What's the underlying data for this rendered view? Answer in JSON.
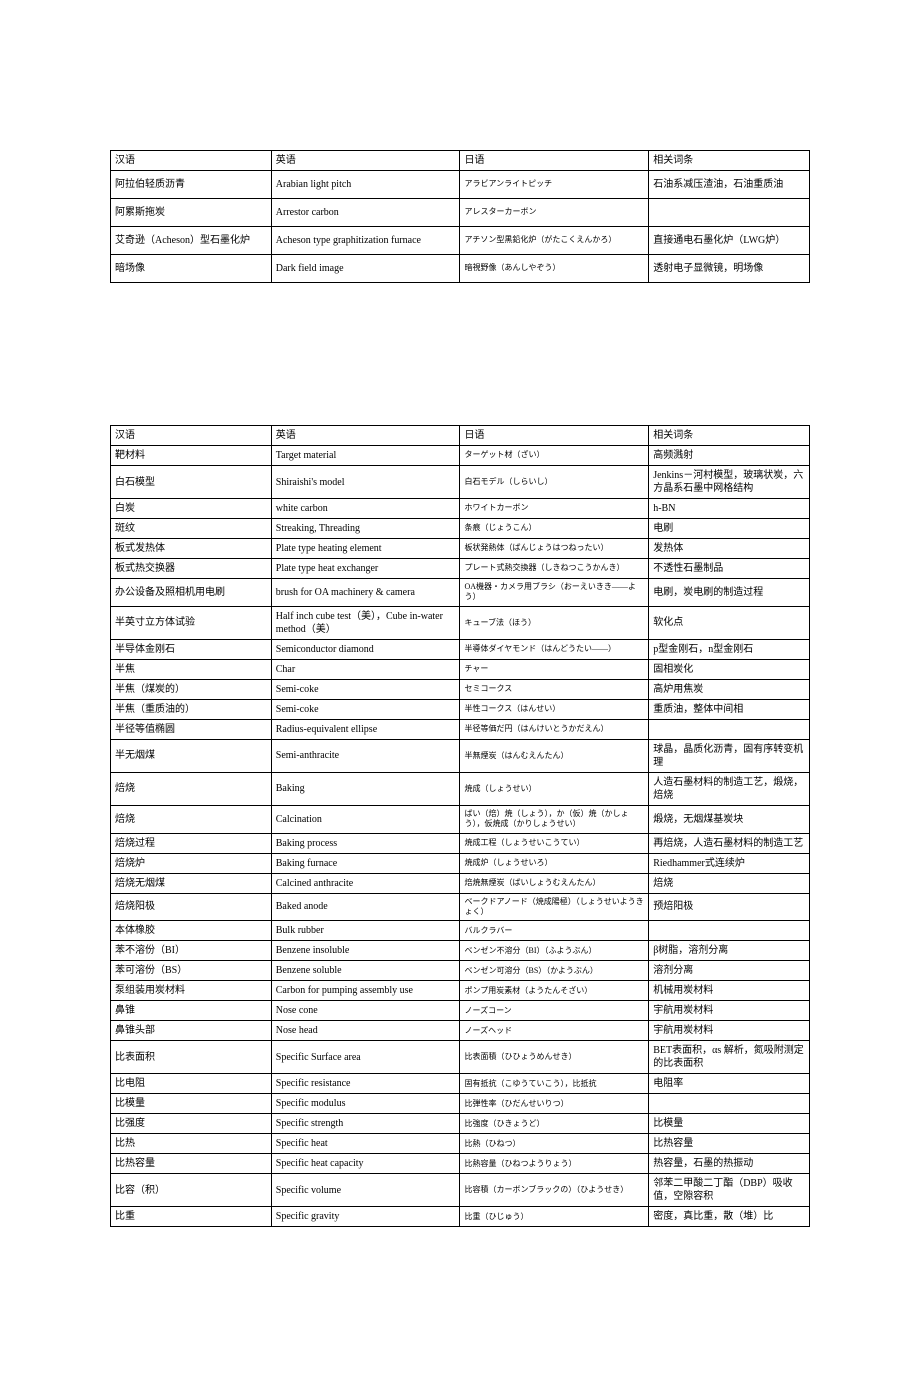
{
  "table1": {
    "headers": [
      "汉语",
      "英语",
      "日语",
      "相关词条"
    ],
    "rows": [
      [
        "阿拉伯轻质沥青",
        "Arabian light pitch",
        "アラビアンライトピッチ",
        "石油系减压渣油，石油重质油"
      ],
      [
        "阿累斯拖炭",
        "Arrestor carbon",
        "アレスターカーボン",
        ""
      ],
      [
        "艾奇逊（Acheson）型石墨化炉",
        "Acheson type graphitization furnace",
        "アチソン型黒鉛化炉（がたこくえんかろ）",
        "直接通电石墨化炉（LWG炉）"
      ],
      [
        "暗场像",
        "Dark field image",
        "暗視野像（あんしやぞう）",
        "透射电子显微镜，明场像"
      ]
    ]
  },
  "table2": {
    "headers": [
      "汉语",
      "英语",
      "日语",
      "相关词条"
    ],
    "rows": [
      [
        "靶材料",
        "Target material",
        "ターゲット材（ざい）",
        "高频溅射"
      ],
      [
        "白石模型",
        "Shiraishi's model",
        "白石モデル（しらいし）",
        "Jenkins－河村模型，玻璃状炭，六方晶系石墨中网格结构"
      ],
      [
        "白炭",
        "white carbon",
        "ホワイトカーボン",
        "h-BN"
      ],
      [
        "斑纹",
        "Streaking, Threading",
        "条痕（じょうこん）",
        "电刷"
      ],
      [
        "板式发热体",
        "Plate type heating element",
        "板状発熱体（ばんじょうはつねったい）",
        "发热体"
      ],
      [
        "板式热交换器",
        "Plate type heat exchanger",
        "プレート式熱交換器（しきねつこうかんき）",
        "不透性石墨制品"
      ],
      [
        "办公设备及照相机用电刷",
        "brush for OA machinery & camera",
        "OA機器・カメラ用ブラシ（おーえいきき――よう）",
        "电刷，炭电刷的制造过程"
      ],
      [
        "半英寸立方体试验",
        "Half inch cube test（美），Cube in-water method（美）",
        "キューブ法（ほう）",
        "软化点"
      ],
      [
        "半导体金刚石",
        "Semiconductor diamond",
        "半導体ダイヤモンド（はんどうたい――）",
        "p型金刚石，n型金刚石"
      ],
      [
        "半焦",
        "Char",
        "チャー",
        "固相炭化"
      ],
      [
        "半焦（煤炭的）",
        "Semi-coke",
        "セミコークス",
        "高炉用焦炭"
      ],
      [
        "半焦（重质油的）",
        "Semi-coke",
        "半性コークス（はんせい）",
        "重质油，整体中间相"
      ],
      [
        "半径等值椭圆",
        "Radius-equivalent ellipse",
        "半径等価だ円（はんけいとうかだえん）",
        ""
      ],
      [
        "半无烟煤",
        "Semi-anthracite",
        "半無煙炭（はんむえんたん）",
        "球晶，晶质化沥青，固有序转变机理"
      ],
      [
        "焙烧",
        "Baking",
        "焼成（しょうせい）",
        "人造石墨材料的制造工艺，煅烧，焙烧"
      ],
      [
        "焙烧",
        "Calcination",
        "ばい（焙）焼（しょう），か（仮）焼（かしょう），仮焼成（かりしょうせい）",
        "煅烧，无烟煤基炭块"
      ],
      [
        "焙烧过程",
        "Baking process",
        "焼成工程（しょうせいこうてい）",
        "再焙烧，人造石墨材料的制造工艺"
      ],
      [
        "焙烧炉",
        "Baking furnace",
        "焼成炉（しょうせいろ）",
        "Riedhammer式连续炉"
      ],
      [
        "焙烧无烟煤",
        "Calcined anthracite",
        "焙焼無煙炭（ばいしょうむえんたん）",
        "焙烧"
      ],
      [
        "焙烧阳极",
        "Baked anode",
        "ベークドアノード（焼成陽極）（しょうせいようきょく）",
        "预焙阳极"
      ],
      [
        "本体橡胶",
        "Bulk rubber",
        "バルクラバー",
        ""
      ],
      [
        "苯不溶份（BI）",
        "Benzene insoluble",
        "ベンゼン不溶分（BI）（ふようぶん）",
        "β树脂，溶剂分离"
      ],
      [
        "苯可溶份（BS）",
        "Benzene soluble",
        "ベンゼン可溶分（BS）（かようぶん）",
        "溶剂分离"
      ],
      [
        "泵组装用炭材料",
        "Carbon for pumping assembly use",
        "ポンプ用炭素材（ようたんそざい）",
        "机械用炭材料"
      ],
      [
        "鼻锥",
        "Nose cone",
        "ノーズコーン",
        "宇航用炭材料"
      ],
      [
        "鼻锥头部",
        "Nose head",
        "ノーズヘッド",
        "宇航用炭材料"
      ],
      [
        "比表面积",
        "Specific Surface area",
        "比表面積（ひひょうめんせき）",
        "BET表面积，αs 解析，氮吸附测定的比表面积"
      ],
      [
        "比电阻",
        "Specific resistance",
        "固有抵抗（こゆうていこう），比抵抗",
        "电阻率"
      ],
      [
        "比模量",
        "Specific modulus",
        "比弾性率（ひだんせいりつ）",
        ""
      ],
      [
        "比强度",
        "Specific strength",
        "比強度（ひきょうど）",
        "比模量"
      ],
      [
        "比热",
        "Specific heat",
        "比熱（ひねつ）",
        "比热容量"
      ],
      [
        "比热容量",
        "Specific heat capacity",
        "比熱容量（ひねつようりょう）",
        "热容量，石墨的热振动"
      ],
      [
        "比容（积）",
        "Specific volume",
        "比容積（カーボンブラックの）（ひようせき）",
        "邻苯二甲酸二丁酯（DBP）吸收值，空隙容积"
      ],
      [
        "比重",
        "Specific gravity",
        "比重（ひじゅう）",
        "密度，真比重，散（堆）比"
      ]
    ]
  }
}
